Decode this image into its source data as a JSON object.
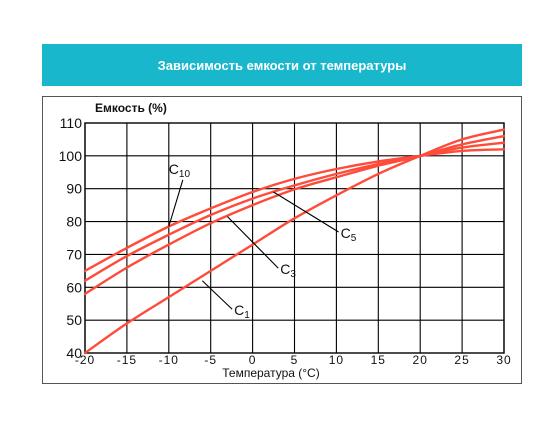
{
  "header": {
    "title": "Зависимость емкости от температуры"
  },
  "colors": {
    "banner": "#19b7cc",
    "curve": "#ff4b3a",
    "grid": "#000000"
  },
  "chart_data": {
    "type": "line",
    "title": "Зависимость емкости от температуры",
    "ylabel": "Емкость (%)",
    "xlabel": "Температура (°C)",
    "xlim": [
      -20,
      30
    ],
    "ylim": [
      40,
      110
    ],
    "xticks": [
      -20,
      -15,
      -10,
      -5,
      0,
      5,
      10,
      15,
      20,
      25,
      30
    ],
    "yticks": [
      40,
      50,
      60,
      70,
      80,
      90,
      100,
      110
    ],
    "xtick_labels": [
      "-20",
      "-15",
      "-10",
      "-5",
      "0",
      "5",
      "10",
      "15",
      "20",
      "25",
      "30"
    ],
    "ytick_labels": [
      "40",
      "50",
      "60",
      "70",
      "80",
      "90",
      "100",
      "110"
    ],
    "grid": true,
    "x": [
      -20,
      -15,
      -10,
      -5,
      0,
      5,
      10,
      15,
      20,
      25,
      30
    ],
    "series": [
      {
        "name": "C10",
        "values": [
          65,
          72,
          78.5,
          84,
          89,
          93,
          96,
          98.3,
          100,
          101.5,
          102
        ]
      },
      {
        "name": "C5",
        "values": [
          62,
          69.5,
          76,
          82,
          87,
          91,
          94.5,
          97.5,
          100,
          102.5,
          104
        ]
      },
      {
        "name": "C3",
        "values": [
          58,
          66,
          73,
          79.5,
          85,
          89.8,
          93.5,
          97,
          100,
          103.5,
          106
        ]
      },
      {
        "name": "C1",
        "values": [
          40,
          49,
          57,
          65,
          73,
          81,
          88,
          94.5,
          100,
          105,
          108
        ]
      }
    ],
    "annotations": [
      {
        "label": "C10",
        "series": "C10",
        "label_at": [
          -10,
          94.5
        ],
        "pointer_to": [
          -10,
          78.5
        ]
      },
      {
        "label": "C5",
        "series": "C5",
        "label_at": [
          10.5,
          75
        ],
        "pointer_to": [
          2.5,
          89
        ]
      },
      {
        "label": "C3",
        "series": "C3",
        "label_at": [
          3.3,
          64
        ],
        "pointer_to": [
          -3,
          81.5
        ]
      },
      {
        "label": "C1",
        "series": "C1",
        "label_at": [
          -2.2,
          51.5
        ],
        "pointer_to": [
          -6,
          62
        ]
      }
    ]
  }
}
